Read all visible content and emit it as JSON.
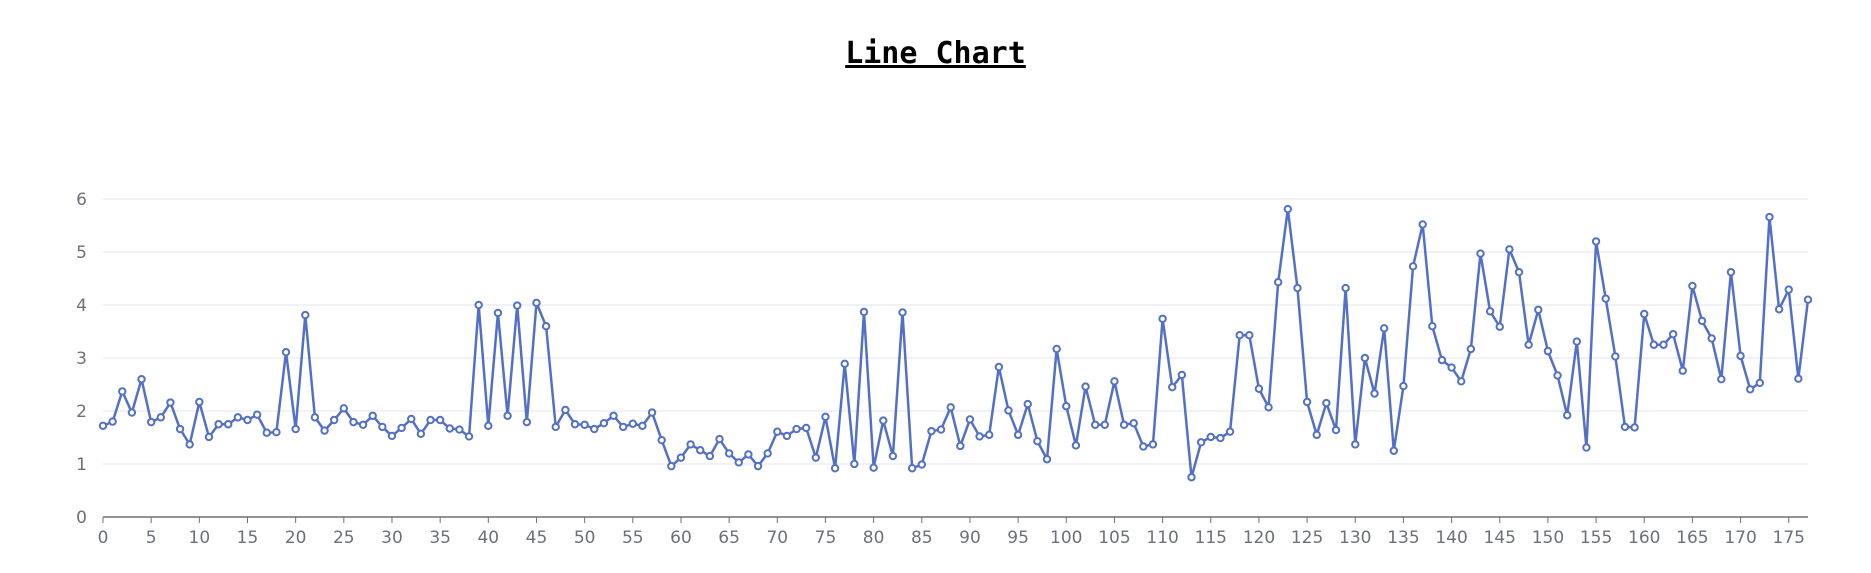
{
  "chart_data": {
    "type": "line",
    "title": "Line Chart",
    "xlabel": "",
    "ylabel": "",
    "xlim": [
      0,
      177
    ],
    "ylim": [
      0,
      6
    ],
    "y_ticks": [
      0,
      1,
      2,
      3,
      4,
      5,
      6
    ],
    "x_tick_step": 5,
    "grid": true,
    "legend": "none",
    "color": "#5470c6",
    "marker": "hollow-circle",
    "x": [
      0,
      1,
      2,
      3,
      4,
      5,
      6,
      7,
      8,
      9,
      10,
      11,
      12,
      13,
      14,
      15,
      16,
      17,
      18,
      19,
      20,
      21,
      22,
      23,
      24,
      25,
      26,
      27,
      28,
      29,
      30,
      31,
      32,
      33,
      34,
      35,
      36,
      37,
      38,
      39,
      40,
      41,
      42,
      43,
      44,
      45,
      46,
      47,
      48,
      49,
      50,
      51,
      52,
      53,
      54,
      55,
      56,
      57,
      58,
      59,
      60,
      61,
      62,
      63,
      64,
      65,
      66,
      67,
      68,
      69,
      70,
      71,
      72,
      73,
      74,
      75,
      76,
      77,
      78,
      79,
      80,
      81,
      82,
      83,
      84,
      85,
      86,
      87,
      88,
      89,
      90,
      91,
      92,
      93,
      94,
      95,
      96,
      97,
      98,
      99,
      100,
      101,
      102,
      103,
      104,
      105,
      106,
      107,
      108,
      109,
      110,
      111,
      112,
      113,
      114,
      115,
      116,
      117,
      118,
      119,
      120,
      121,
      122,
      123,
      124,
      125,
      126,
      127,
      128,
      129,
      130,
      131,
      132,
      133,
      134,
      135,
      136,
      137,
      138,
      139,
      140,
      141,
      142,
      143,
      144,
      145,
      146,
      147,
      148,
      149,
      150,
      151,
      152,
      153,
      154,
      155,
      156,
      157,
      158,
      159,
      160,
      161,
      162,
      163,
      164,
      165,
      166,
      167,
      168,
      169,
      170,
      171,
      172,
      173,
      174,
      175,
      176,
      177
    ],
    "values": [
      1.72,
      1.8,
      2.37,
      1.97,
      2.6,
      1.79,
      1.88,
      2.16,
      1.66,
      1.37,
      2.17,
      1.51,
      1.75,
      1.75,
      1.88,
      1.83,
      1.93,
      1.59,
      1.6,
      3.11,
      1.66,
      3.81,
      1.88,
      1.63,
      1.83,
      2.05,
      1.79,
      1.74,
      1.91,
      1.7,
      1.53,
      1.68,
      1.85,
      1.57,
      1.83,
      1.83,
      1.67,
      1.65,
      1.52,
      4,
      1.72,
      3.85,
      1.91,
      3.99,
      1.79,
      4.04,
      3.6,
      1.7,
      2.02,
      1.75,
      1.74,
      1.66,
      1.77,
      1.91,
      1.7,
      1.76,
      1.72,
      1.97,
      1.45,
      0.96,
      1.12,
      1.37,
      1.26,
      1.15,
      1.47,
      1.2,
      1.03,
      1.18,
      0.96,
      1.2,
      1.61,
      1.53,
      1.66,
      1.68,
      1.12,
      1.89,
      0.92,
      2.89,
      1,
      3.87,
      0.93,
      1.82,
      1.15,
      3.86,
      0.92,
      0.99,
      1.62,
      1.65,
      2.07,
      1.34,
      1.84,
      1.52,
      1.55,
      2.83,
      2.01,
      1.55,
      2.13,
      1.43,
      1.09,
      3.17,
      2.09,
      1.35,
      2.46,
      1.74,
      1.74,
      2.56,
      1.74,
      1.77,
      1.33,
      1.37,
      3.74,
      2.45,
      2.68,
      0.75,
      1.41,
      1.51,
      1.49,
      1.61,
      3.43,
      3.43,
      2.42,
      2.07,
      4.43,
      5.81,
      4.32,
      2.17,
      1.55,
      2.15,
      1.64,
      4.32,
      1.37,
      3,
      2.33,
      3.56,
      1.25,
      2.47,
      4.73,
      5.52,
      3.6,
      2.96,
      2.82,
      2.56,
      3.17,
      4.97,
      3.88,
      3.59,
      5.05,
      4.62,
      3.25,
      3.91,
      3.13,
      2.67,
      1.92,
      3.31,
      1.31,
      5.2,
      4.12,
      3.03,
      1.7,
      1.69,
      3.83,
      3.25,
      3.25,
      3.45,
      2.76,
      4.36,
      3.7,
      3.37,
      2.6,
      4.62,
      3.04,
      2.41,
      2.53,
      5.66,
      3.92,
      4.29,
      2.61,
      4.1
    ]
  }
}
